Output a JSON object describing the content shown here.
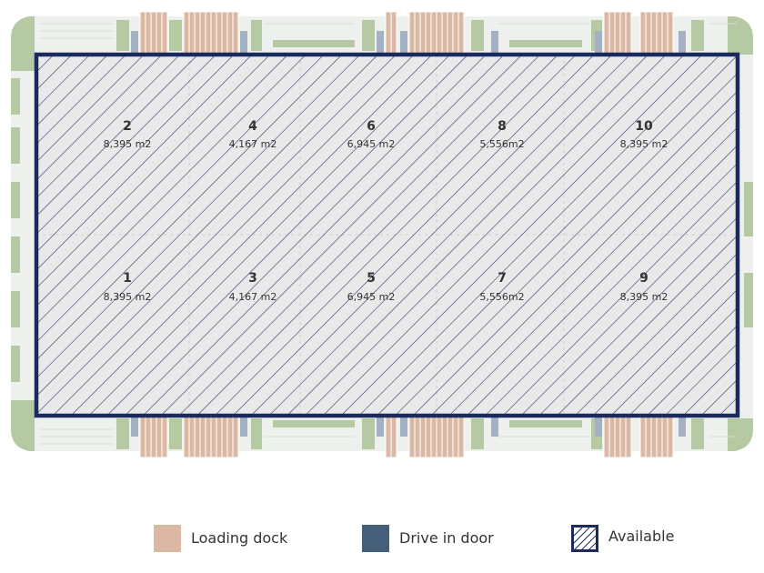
{
  "units": [
    {
      "number": "2",
      "area": "8,395 m2"
    },
    {
      "number": "4",
      "area": "4,167 m2"
    },
    {
      "number": "6",
      "area": "6,945 m2"
    },
    {
      "number": "8",
      "area": "5,556m2"
    },
    {
      "number": "10",
      "area": "8,395 m2"
    },
    {
      "number": "1",
      "area": "8,395 m2"
    },
    {
      "number": "3",
      "area": "4,167 m2"
    },
    {
      "number": "5",
      "area": "6,945 m2"
    },
    {
      "number": "7",
      "area": "5,556m2"
    },
    {
      "number": "9",
      "area": "8,395 m2"
    }
  ],
  "legend": {
    "loading_dock": {
      "label": "Loading dock",
      "color": "#dbb8a3"
    },
    "drive_in_door": {
      "label": "Drive in door",
      "color": "#455f7a"
    },
    "available": {
      "label": "Available",
      "color": "#1e2a5a"
    }
  },
  "colors": {
    "outline": "#1b2a5e",
    "hatch": "#1b2a5e",
    "floor": "#e9e9e9",
    "landscape": "#b5c9a2",
    "paving": "#eef0ee"
  }
}
